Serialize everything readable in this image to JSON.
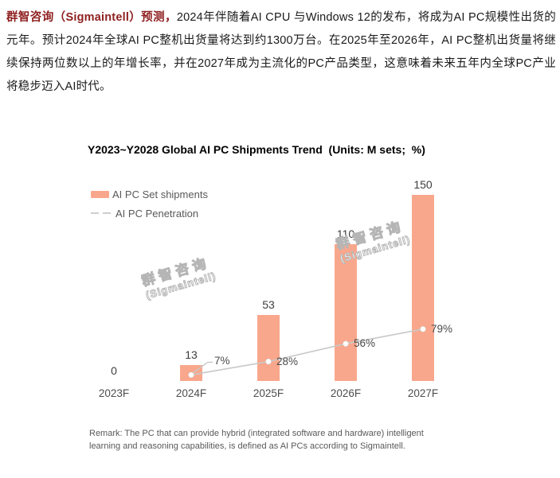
{
  "article": {
    "lead": "群智咨询（Sigmaintell）预测，",
    "body": "2024年伴随着AI CPU 与Windows 12的发布，将成为AI PC规模性出货的元年。预计2024年全球AI PC整机出货量将达到约1300万台。在2025年至2026年，AI PC整机出货量将继续保持两位数以上的年增长率，并在2027年成为主流化的PC产品类型，这意味着未来五年内全球PC产业将稳步迈入AI时代。",
    "lead_color": "#8E1F1F"
  },
  "chart": {
    "title": "Y2023~Y2028 Global AI PC Shipments Trend  (Units: M sets;  %)",
    "legend": [
      {
        "label": "AI PC Set shipments"
      },
      {
        "label": "AI PC Penetration"
      }
    ],
    "watermark": {
      "line1": "群智咨询",
      "line2": "(Sigmaintell)"
    },
    "remark_lines": [
      "Remark: The PC that can provide hybrid (integrated software and hardware) intelligent",
      "learning and reasoning capabilities, is defined as AI PCs according to Sigmaintell."
    ]
  },
  "chart_data": {
    "type": "bar",
    "title": "Y2023~Y2028 Global AI PC Shipments Trend  (Units: M sets;  %)",
    "categories": [
      "2023F",
      "2024F",
      "2025F",
      "2026F",
      "2027F"
    ],
    "series": [
      {
        "name": "AI PC Set shipments",
        "type": "bar",
        "unit": "M sets",
        "values": [
          0,
          13,
          53,
          110,
          150
        ],
        "color": "#F9A78C"
      },
      {
        "name": "AI PC Penetration",
        "type": "line",
        "unit": "%",
        "values": [
          null,
          7,
          28,
          56,
          79
        ],
        "color": "#C8C8C8",
        "marker_color": "#ffffff"
      }
    ],
    "data_labels": true,
    "xlabel": "",
    "ylabel": "",
    "legend_position": "top-left",
    "grid": false,
    "y_axis_visible": false
  },
  "colors": {
    "bar": "#F9A78C",
    "line": "#C8C8C8",
    "value_label": "#3d3d3d",
    "axis_label": "#4d4d4d",
    "legend_text": "#595959",
    "watermark_outline": "#b5b5b5"
  }
}
